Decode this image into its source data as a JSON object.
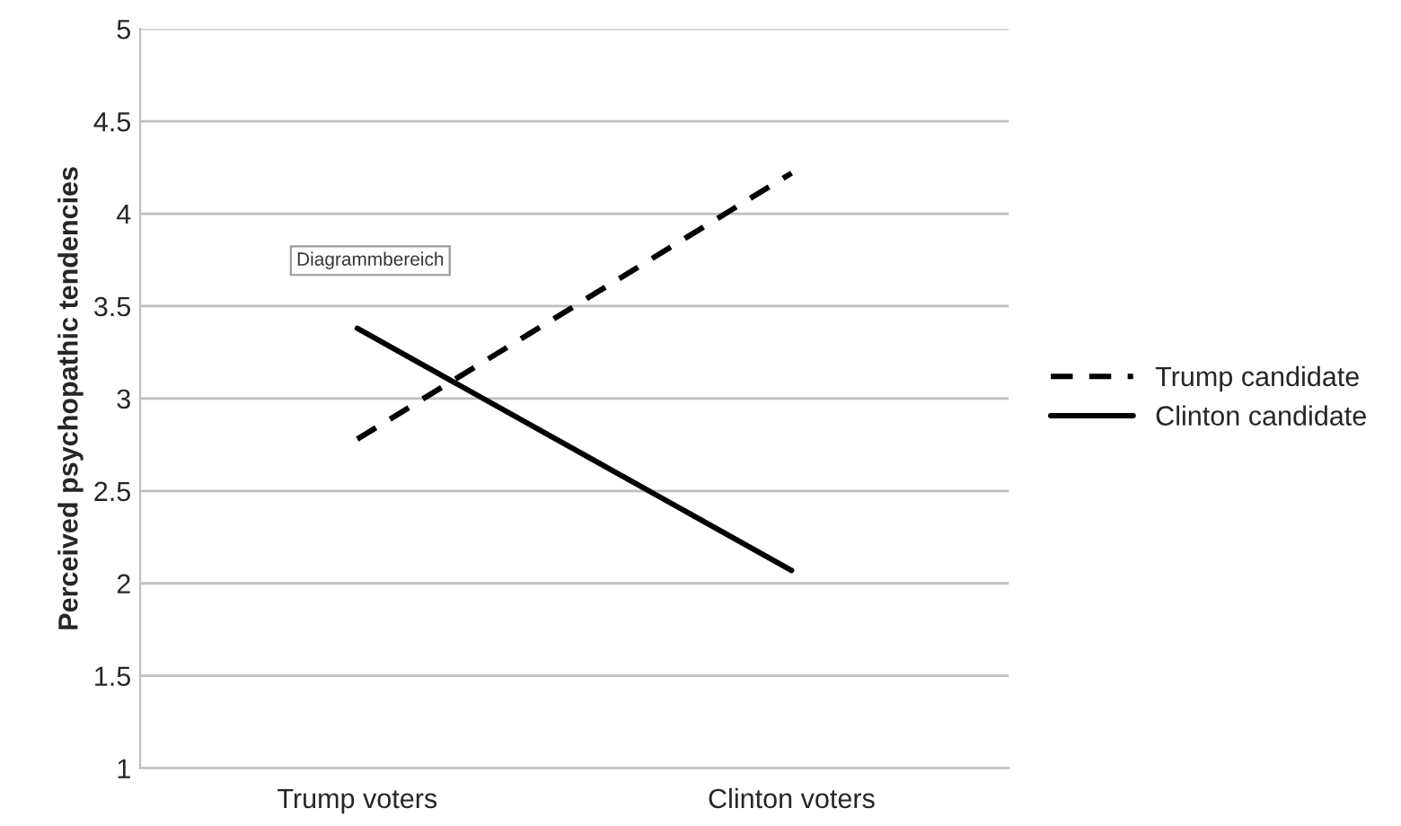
{
  "chart_data": {
    "type": "line",
    "ylabel": "Perceived psychopathic tendencies",
    "categories": [
      "Trump voters",
      "Clinton voters"
    ],
    "series": [
      {
        "name": "Trump candidate",
        "color": "#000000",
        "line_style": "dashed",
        "values": [
          2.78,
          4.22
        ]
      },
      {
        "name": "Clinton candidate",
        "color": "#000000",
        "line_style": "solid",
        "values": [
          3.38,
          2.07
        ]
      }
    ],
    "ylim": [
      1,
      5
    ],
    "yticks": [
      1,
      1.5,
      2,
      2.5,
      3,
      3.5,
      4,
      4.5,
      5
    ],
    "grid": "y",
    "legend": "right",
    "marker": "none",
    "annotations": [
      "Diagrammbereich"
    ]
  }
}
